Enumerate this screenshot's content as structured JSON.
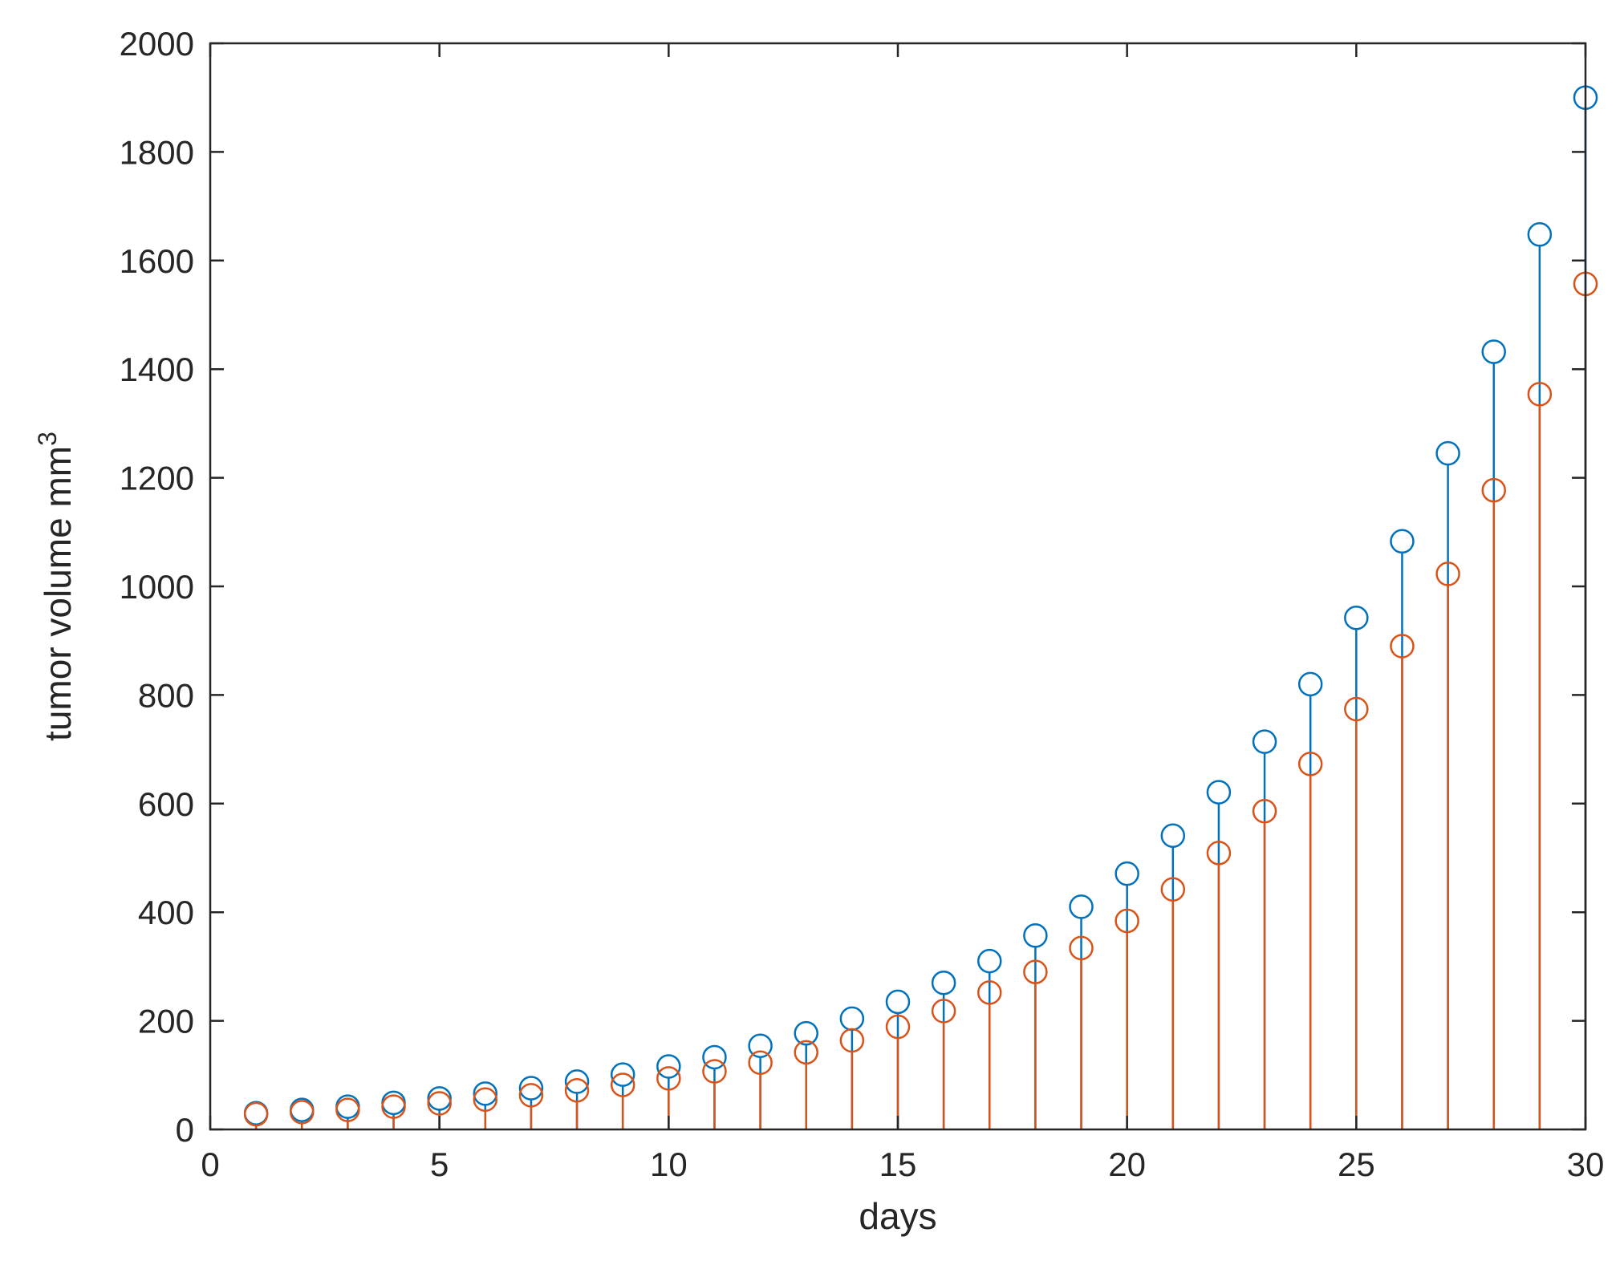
{
  "chart_data": {
    "type": "scatter",
    "style": "stem",
    "x": [
      1,
      2,
      3,
      4,
      5,
      6,
      7,
      8,
      9,
      10,
      11,
      12,
      13,
      14,
      15,
      16,
      17,
      18,
      19,
      20,
      21,
      22,
      23,
      24,
      25,
      26,
      27,
      28,
      29,
      30
    ],
    "series": [
      {
        "color": "#0072BD",
        "values": [
          30,
          36,
          42,
          49,
          57,
          66,
          76,
          88,
          101,
          116,
          133,
          154,
          177,
          204,
          235,
          270,
          310,
          357,
          410,
          471,
          541,
          621,
          714,
          820,
          942,
          1083,
          1245,
          1432,
          1648,
          1900
        ]
      },
      {
        "color": "#D95319",
        "values": [
          28,
          32,
          36,
          42,
          48,
          55,
          63,
          72,
          82,
          94,
          107,
          123,
          142,
          164,
          189,
          218,
          252,
          290,
          334,
          384,
          442,
          509,
          586,
          673,
          774,
          890,
          1023,
          1177,
          1354,
          1557
        ]
      }
    ],
    "xlabel": "days",
    "ylabel": "tumor volume mm",
    "ylabel_sup": "3",
    "xlim": [
      0,
      30
    ],
    "ylim": [
      0,
      2000
    ],
    "xticks": [
      "0",
      "5",
      "10",
      "15",
      "20",
      "25",
      "30"
    ],
    "yticks": [
      "0",
      "200",
      "400",
      "600",
      "800",
      "1000",
      "1200",
      "1400",
      "1600",
      "1800",
      "2000"
    ],
    "grid": false,
    "legend": "none"
  }
}
